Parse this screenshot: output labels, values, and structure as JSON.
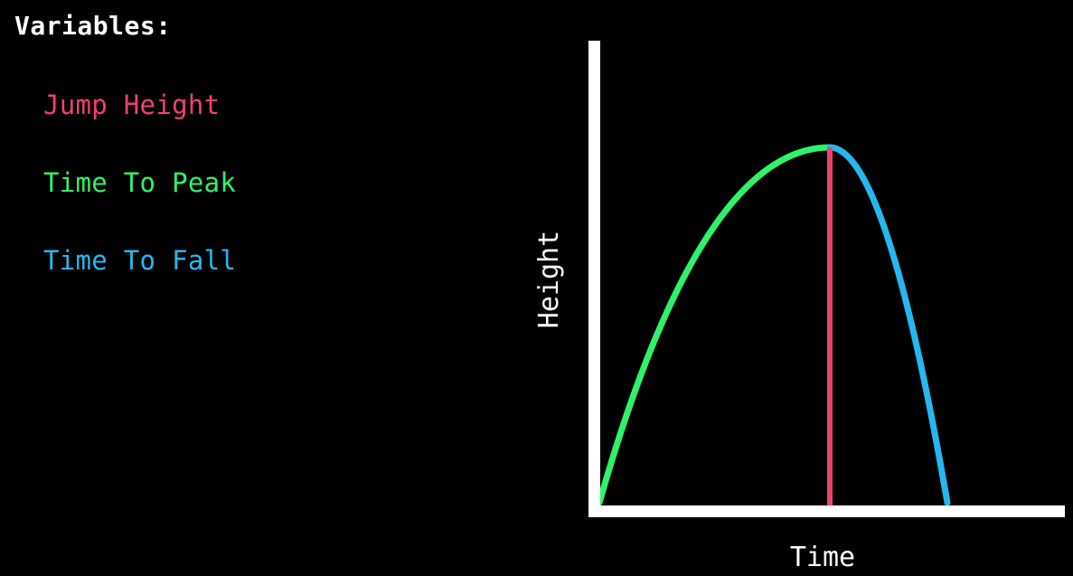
{
  "heading": "Variables:",
  "variables": [
    {
      "label": "Jump Height",
      "color": "#f2416b"
    },
    {
      "label": "Time To Peak",
      "color": "#2ef26a"
    },
    {
      "label": "Time To Fall",
      "color": "#25b8ee"
    }
  ],
  "diagram": {
    "y_axis_label": "Height",
    "x_axis_label": "Time",
    "axis_color": "#ffffff",
    "rise_curve_color": "#2ef26a",
    "fall_curve_color": "#25b8ee",
    "peak_line_color": "#f2416b"
  }
}
